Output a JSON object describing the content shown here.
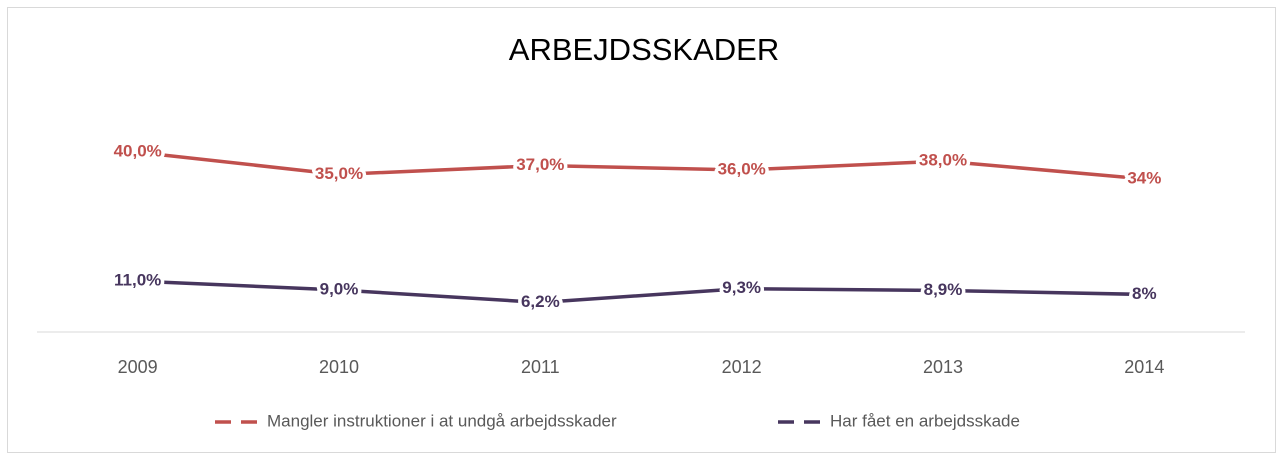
{
  "chart_data": {
    "type": "line",
    "title": "ARBEJDSSKADER",
    "categories": [
      "2009",
      "2010",
      "2011",
      "2012",
      "2013",
      "2014"
    ],
    "ylim": [
      0,
      45
    ],
    "series": [
      {
        "name": "Mangler instruktioner i at undgå arbejdsskader",
        "color": "#c0504d",
        "values": [
          40,
          35,
          37,
          36,
          38,
          34
        ],
        "value_labels": [
          "40,0%",
          "35,0%",
          "37,0%",
          "36,0%",
          "38,0%",
          "34%"
        ]
      },
      {
        "name": "Har fået en arbejdsskade",
        "color": "#47365e",
        "values": [
          11,
          9,
          6.2,
          9.3,
          8.9,
          8
        ],
        "value_labels": [
          "11,0%",
          "9,0%",
          "6,2%",
          "9,3%",
          "8,9%",
          "8%"
        ]
      }
    ]
  }
}
